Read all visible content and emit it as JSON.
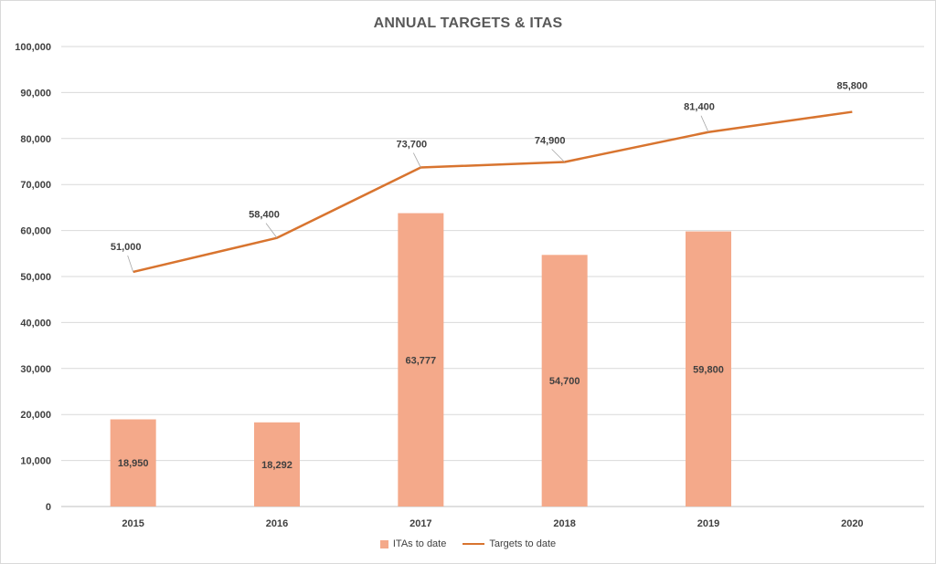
{
  "chart_data": {
    "type": "bar+line",
    "title": "ANNUAL TARGETS & ITAS",
    "categories": [
      "2015",
      "2016",
      "2017",
      "2018",
      "2019",
      "2020"
    ],
    "series": [
      {
        "name": "ITAs to date",
        "type": "bar",
        "color": "#f4a98a",
        "values": [
          18950,
          18292,
          63777,
          54700,
          59800,
          null
        ],
        "labels": [
          "18,950",
          "18,292",
          "63,777",
          "54,700",
          "59,800",
          ""
        ]
      },
      {
        "name": "Targets to date",
        "type": "line",
        "color": "#d8742f",
        "values": [
          51000,
          58400,
          73700,
          74900,
          81400,
          85800
        ],
        "labels": [
          "51,000",
          "58,400",
          "73,700",
          "74,900",
          "81,400",
          "85,800"
        ]
      }
    ],
    "ylim": [
      0,
      100000
    ],
    "yticks": [
      0,
      10000,
      20000,
      30000,
      40000,
      50000,
      60000,
      70000,
      80000,
      90000,
      100000
    ],
    "ytick_labels": [
      "0",
      "10,000",
      "20,000",
      "30,000",
      "40,000",
      "50,000",
      "60,000",
      "70,000",
      "80,000",
      "90,000",
      "100,000"
    ],
    "grid": true,
    "legend_position": "bottom"
  }
}
